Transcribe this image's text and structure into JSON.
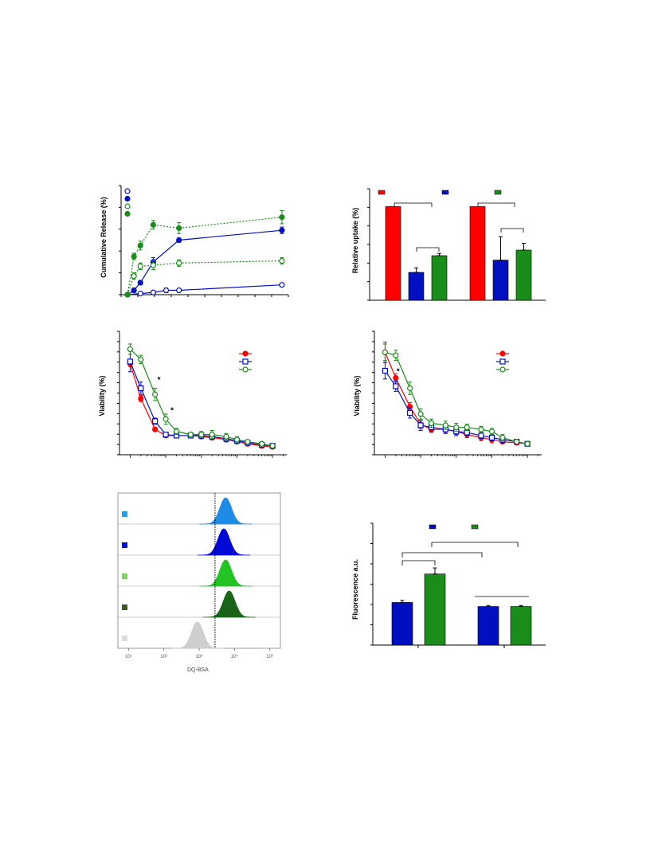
{
  "chart_data": [
    {
      "id": "release",
      "type": "line",
      "title": "",
      "ylabel": "Cumulative  Release (%)",
      "xlabel": "",
      "x": [
        0,
        2,
        4,
        6,
        8,
        24
      ],
      "xlim": [
        -1,
        25
      ],
      "ylim": [
        0,
        100
      ],
      "series": [
        {
          "name": "",
          "color": "#0010c0",
          "marker": "open-circle",
          "line": "solid",
          "x": [
            0,
            2,
            4,
            6,
            8,
            24
          ],
          "y": [
            0,
            1,
            2,
            4,
            4,
            9
          ],
          "err": [
            1,
            1,
            1,
            2,
            1,
            1
          ]
        },
        {
          "name": "",
          "color": "#0010c0",
          "marker": "filled-circle",
          "line": "solid",
          "x": [
            0,
            1,
            2,
            4,
            8,
            24
          ],
          "y": [
            0,
            4,
            11,
            30,
            50,
            59
          ],
          "err": [
            1,
            2,
            2,
            4,
            2,
            3
          ]
        },
        {
          "name": "",
          "color": "#1a8c1a",
          "marker": "open-circle",
          "line": "dotted",
          "x": [
            0,
            1,
            2,
            4,
            8,
            24
          ],
          "y": [
            0,
            17,
            26,
            27,
            29,
            31
          ],
          "err": [
            1,
            3,
            3,
            4,
            3,
            3
          ]
        },
        {
          "name": "",
          "color": "#1a8c1a",
          "marker": "filled-circle",
          "line": "dotted",
          "x": [
            0,
            1,
            2,
            4,
            8,
            24
          ],
          "y": [
            0,
            35,
            45,
            64,
            61,
            71
          ],
          "err": [
            1,
            3,
            4,
            4,
            5,
            6
          ]
        }
      ],
      "legend": "top-left"
    },
    {
      "id": "uptake",
      "type": "bar",
      "title": "",
      "ylabel": "Relative uptake (%)",
      "ylim": [
        0,
        100
      ],
      "groups": [
        {
          "bars": [
            {
              "color": "#ff0000",
              "value": 84,
              "err": 0
            },
            {
              "color": "#0010c0",
              "value": 25,
              "err": 4
            },
            {
              "color": "#1a8c1a",
              "value": 40,
              "err": 2
            }
          ]
        },
        {
          "bars": [
            {
              "color": "#ff0000",
              "value": 84,
              "err": 0
            },
            {
              "color": "#0010c0",
              "value": 36,
              "err": 21
            },
            {
              "color": "#1a8c1a",
              "value": 45,
              "err": 6
            }
          ]
        }
      ],
      "legend_colors": [
        "#ff0000",
        "#0010c0",
        "#1a8c1a"
      ],
      "legend": "top"
    },
    {
      "id": "viability1",
      "type": "line",
      "title": "",
      "ylabel": "Viability (%)",
      "xscale": "log",
      "x": [
        0.001,
        0.002,
        0.005,
        0.01,
        0.02,
        0.05,
        0.1,
        0.2,
        0.5,
        1,
        2,
        5,
        10
      ],
      "ylim": [
        0,
        120
      ],
      "annotation": "*",
      "series": [
        {
          "name": "",
          "color": "#ff0000",
          "marker": "filled-circle",
          "y": [
            84,
            50,
            20,
            14,
            14,
            14,
            13,
            12,
            10,
            8,
            6,
            4,
            3
          ],
          "err": [
            3,
            3,
            2,
            2,
            2,
            2,
            2,
            2,
            2,
            2,
            2,
            2,
            1
          ]
        },
        {
          "name": "",
          "color": "#0010c0",
          "marker": "open-square",
          "y": [
            86,
            60,
            28,
            15,
            14,
            14,
            14,
            13,
            11,
            9,
            7,
            5,
            4
          ],
          "err": [
            10,
            6,
            3,
            2,
            2,
            2,
            3,
            3,
            3,
            2,
            2,
            2,
            1
          ]
        },
        {
          "name": "",
          "color": "#1a8c1a",
          "marker": "open-circle",
          "y": [
            98,
            88,
            54,
            30,
            18,
            15,
            15,
            15,
            13,
            10,
            8,
            6,
            4
          ],
          "err": [
            5,
            4,
            6,
            5,
            3,
            2,
            3,
            4,
            3,
            3,
            2,
            2,
            1
          ]
        }
      ],
      "legend": "top-right"
    },
    {
      "id": "viability2",
      "type": "line",
      "title": "",
      "ylabel": "Viability (%)",
      "xscale": "log",
      "x": [
        0.001,
        0.002,
        0.005,
        0.01,
        0.02,
        0.05,
        0.1,
        0.2,
        0.5,
        1,
        2,
        5,
        10
      ],
      "ylim": [
        0,
        120
      ],
      "annotation": "*",
      "series": [
        {
          "name": "",
          "color": "#ff0000",
          "marker": "filled-circle",
          "y": [
            95,
            70,
            42,
            25,
            20,
            20,
            18,
            15,
            12,
            10,
            8,
            7,
            6
          ],
          "err": [
            10,
            4,
            4,
            4,
            3,
            3,
            3,
            3,
            3,
            3,
            2,
            2,
            2
          ]
        },
        {
          "name": "",
          "color": "#0010c0",
          "marker": "open-square",
          "y": [
            77,
            62,
            36,
            24,
            22,
            20,
            18,
            17,
            14,
            12,
            10,
            8,
            6
          ],
          "err": [
            8,
            5,
            5,
            5,
            4,
            4,
            4,
            3,
            3,
            3,
            3,
            2,
            2
          ]
        },
        {
          "name": "",
          "color": "#1a8c1a",
          "marker": "open-circle",
          "y": [
            95,
            92,
            60,
            35,
            26,
            24,
            22,
            22,
            20,
            18,
            12,
            8,
            6
          ],
          "err": [
            8,
            5,
            6,
            5,
            4,
            4,
            4,
            3,
            3,
            3,
            3,
            2,
            2
          ]
        }
      ],
      "legend": "top-right"
    },
    {
      "id": "flow",
      "type": "histogram",
      "xlabel": "DQ-BSA",
      "xscale": "log",
      "xticks": [
        "10¹",
        "10²",
        "10³",
        "10⁴",
        "10⁵"
      ],
      "rows": [
        {
          "swatch": "#1ea0e6",
          "fill": "#1e8ce6",
          "peak_log": 3.75
        },
        {
          "swatch": "#0010e0",
          "fill": "#0008d8",
          "peak_log": 3.7
        },
        {
          "swatch": "#7fd45a",
          "fill": "#22c322",
          "peak_log": 3.75
        },
        {
          "swatch": "#3c5a1e",
          "fill": "#196419",
          "peak_log": 3.85
        },
        {
          "swatch": "#dcdcdc",
          "fill": "#cfcfcf",
          "peak_log": 2.95
        }
      ],
      "reference_line_log": 3.45
    },
    {
      "id": "fluorescence",
      "type": "bar",
      "title": "",
      "ylabel": "Fluorescence a.u.",
      "ylim": [
        0,
        60
      ],
      "groups": [
        {
          "bars": [
            {
              "color": "#0010c0",
              "value": 21,
              "err": 1
            },
            {
              "color": "#1a8c1a",
              "value": 35,
              "err": 3
            }
          ]
        },
        {
          "bars": [
            {
              "color": "#0010c0",
              "value": 19,
              "err": 0.5
            },
            {
              "color": "#1a8c1a",
              "value": 19,
              "err": 0.5
            }
          ]
        }
      ],
      "legend_colors": [
        "#0010c0",
        "#1a8c1a"
      ],
      "legend": "top"
    }
  ]
}
